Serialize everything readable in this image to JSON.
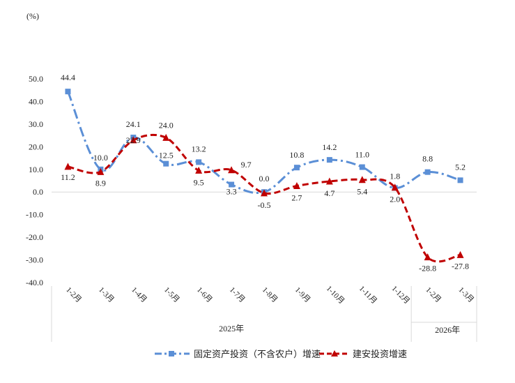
{
  "chart_data": {
    "type": "line",
    "unit_label": "(%)",
    "ylim": [
      -40,
      50
    ],
    "yticks": [
      50,
      40,
      30,
      20,
      10,
      0,
      -10,
      -20,
      -30,
      -40
    ],
    "ytick_labels": [
      "50.0",
      "40.0",
      "30.0",
      "20.0",
      "10.0",
      "0.0",
      "-10.0",
      "-20.0",
      "-30.0",
      "-40.0"
    ],
    "categories": [
      "1-2月",
      "1-3月",
      "1-4月",
      "1-5月",
      "1-6月",
      "1-7月",
      "1-8月",
      "1-9月",
      "1-10月",
      "1-11月",
      "1-12月",
      "1-2月",
      "1-3月"
    ],
    "year_groups": [
      {
        "label": "2025年",
        "start": 0,
        "end": 10
      },
      {
        "label": "2026年",
        "start": 11,
        "end": 12
      }
    ],
    "series": [
      {
        "name": "固定资产投资（不含农户）增速",
        "color": "#5B8FD6",
        "marker": "square",
        "line": "dash-dot",
        "values": [
          44.4,
          10.0,
          24.1,
          12.5,
          13.2,
          3.3,
          0.0,
          10.8,
          14.2,
          11.0,
          1.8,
          8.8,
          5.2
        ],
        "labels": [
          "44.4",
          "10.0",
          "24.1",
          "12.5",
          "13.2",
          "3.3",
          "0.0",
          "10.8",
          "14.2",
          "11.0",
          "1.8",
          "8.8",
          "5.2"
        ]
      },
      {
        "name": "建安投资增速",
        "color": "#C00000",
        "marker": "triangle",
        "line": "dash",
        "values": [
          11.2,
          8.9,
          22.9,
          24.0,
          9.5,
          9.7,
          -0.5,
          2.7,
          4.7,
          5.4,
          2.0,
          -28.8,
          -27.8
        ],
        "labels": [
          "11.2",
          "8.9",
          "22.9",
          "24.0",
          "9.5",
          "9.7",
          "-0.5",
          "2.7",
          "4.7",
          "5.4",
          "2.0",
          "-28.8",
          "-27.8"
        ]
      }
    ],
    "legend_position": "bottom",
    "grid": false
  }
}
